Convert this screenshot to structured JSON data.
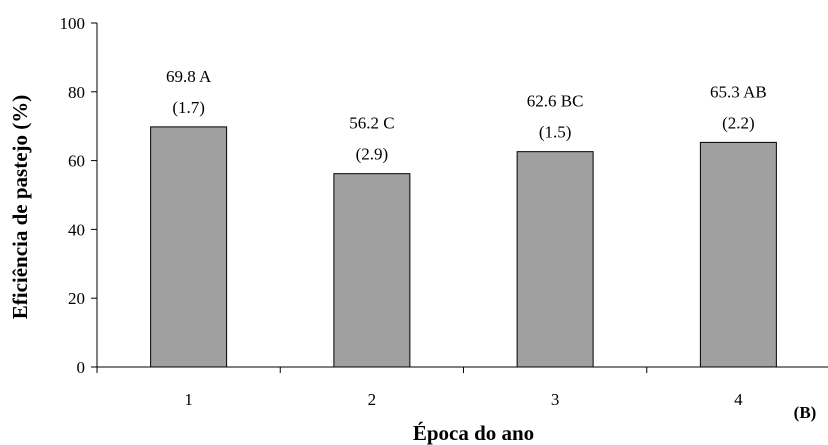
{
  "chart_data": {
    "type": "bar",
    "categories": [
      "1",
      "2",
      "3",
      "4"
    ],
    "values": [
      69.8,
      56.2,
      62.6,
      65.3
    ],
    "letters": [
      "A",
      "C",
      "BC",
      "AB"
    ],
    "errors": [
      "(1.7)",
      "(2.9)",
      "(1.5)",
      "(2.2)"
    ],
    "bar_labels": [
      "69.8 A",
      "56.2 C",
      "62.6 BC",
      "65.3 AB"
    ],
    "xlabel": "Época do ano",
    "ylabel": "Eficiência de pastejo (%)",
    "ylim": [
      0,
      100
    ],
    "yticks": [
      0,
      20,
      40,
      60,
      80,
      100
    ],
    "grid": false,
    "bar_color": "#a0a0a0",
    "panel_label": "(B)"
  }
}
